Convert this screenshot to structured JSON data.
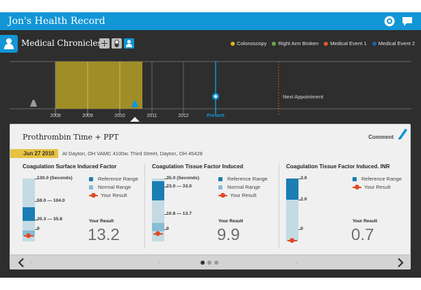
{
  "app": {
    "title": "Jon's Health Record"
  },
  "section": {
    "title": "Medical Chronicles"
  },
  "legend": [
    {
      "label": "Colonoscopy",
      "color": "#d9b620"
    },
    {
      "label": "Right Arm Broken",
      "color": "#6aa84f"
    },
    {
      "label": "Medical Event 1",
      "color": "#e4572e"
    },
    {
      "label": "Medical Event 2",
      "color": "#1f5fa8"
    }
  ],
  "timeline": {
    "years": [
      "2008",
      "2009",
      "2010",
      "2011",
      "2012"
    ],
    "present_label": "Present",
    "next_appointment_label": "Next Appointment"
  },
  "detail": {
    "title": "Prothrombin Time + PPT",
    "comment_label": "Comment",
    "date": "Jun 27 2010",
    "location": "At Dayton, OH VAMC 4100w. Third Street, Dayton, OH 45428"
  },
  "legend_labels": {
    "reference": "Reference Range",
    "normal": "Normal Range",
    "result": "Your Result",
    "your_result_heading": "Your Result"
  },
  "panels": [
    {
      "title": "Coagulation Surface Induced Factor",
      "top_label": "130.0 (Seconds)",
      "reference_range": "59.0 — 104.0",
      "normal_range": "20.3 — 35.8",
      "zero_label": "0",
      "result": "13.2"
    },
    {
      "title": "Coagulation Tissue Factor Induced",
      "top_label": "35.0 (Seconds)",
      "reference_range": "23.0 — 33.0",
      "normal_range": "10.8 — 13.7",
      "zero_label": "0",
      "result": "9.9"
    },
    {
      "title": "Coagulation Tissue Factor Induced. INR",
      "top_label": "3.0",
      "mid_label": "2.0",
      "zero_label": "0",
      "result": "0.7"
    }
  ]
}
